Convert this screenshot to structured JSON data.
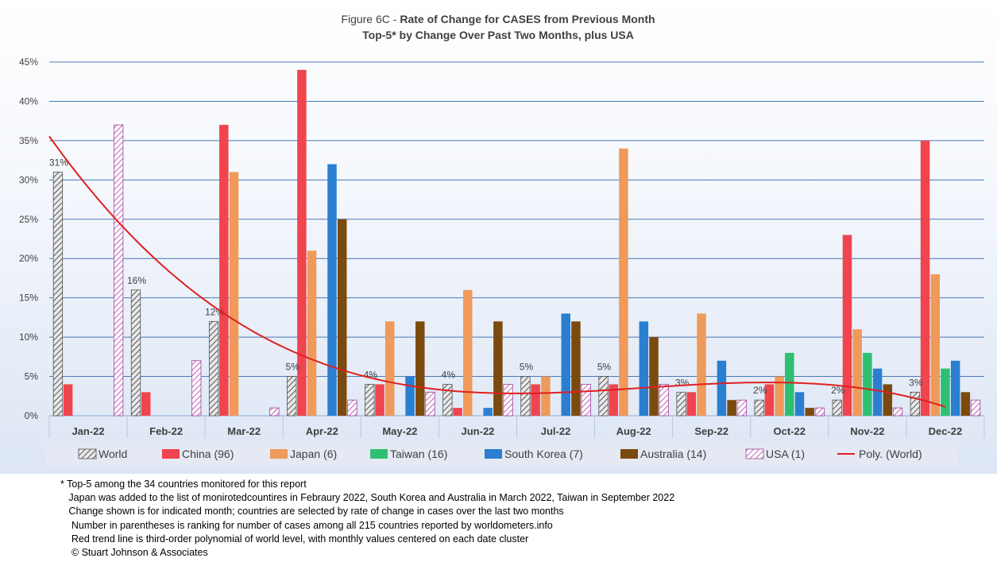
{
  "chart_data": {
    "type": "bar",
    "title_prefix": "Figure 6C - ",
    "title": "Rate of Change for CASES from Previous Month",
    "subtitle": "Top-5* by Change Over Past Two Months, plus USA",
    "categories": [
      "Jan-22",
      "Feb-22",
      "Mar-22",
      "Apr-22",
      "May-22",
      "Jun-22",
      "Jul-22",
      "Aug-22",
      "Sep-22",
      "Oct-22",
      "Nov-22",
      "Dec-22"
    ],
    "ylim": [
      0,
      45
    ],
    "yticks": [
      "0%",
      "5%",
      "10%",
      "15%",
      "20%",
      "25%",
      "30%",
      "35%",
      "40%",
      "45%"
    ],
    "grid": true,
    "legend_position": "bottom",
    "series": [
      {
        "name": "World",
        "color": "#d9d9d9",
        "pattern": "hatch-dark",
        "values": [
          31,
          16,
          12,
          5,
          4,
          4,
          5,
          5,
          3,
          2,
          2,
          3
        ],
        "labels": [
          "31%",
          "16%",
          "12%",
          "5%",
          "4%",
          "4%",
          "5%",
          "5%",
          "3%",
          "2%",
          "2%",
          "3%"
        ]
      },
      {
        "name": "China (96)",
        "color": "#f0444e",
        "values": [
          4,
          3,
          37,
          44,
          4,
          1,
          4,
          4,
          3,
          4,
          23,
          35
        ]
      },
      {
        "name": "Japan (6)",
        "color": "#ef9a5b",
        "values": [
          null,
          null,
          31,
          21,
          12,
          16,
          5,
          34,
          13,
          5,
          11,
          18
        ]
      },
      {
        "name": "Taiwan (16)",
        "color": "#2fbf71",
        "values": [
          null,
          null,
          null,
          null,
          null,
          null,
          null,
          null,
          null,
          8,
          8,
          6
        ]
      },
      {
        "name": "South Korea (7)",
        "color": "#2a7fd1",
        "values": [
          null,
          null,
          null,
          32,
          5,
          1,
          13,
          12,
          7,
          3,
          6,
          7
        ]
      },
      {
        "name": "Australia (14)",
        "color": "#7b4a0e",
        "values": [
          null,
          null,
          null,
          25,
          12,
          12,
          12,
          10,
          2,
          1,
          4,
          3
        ]
      },
      {
        "name": "USA (1)",
        "color": "#ffffff",
        "pattern": "hatch-purple",
        "values": [
          37,
          7,
          1,
          2,
          3,
          4,
          4,
          4,
          2,
          1,
          1,
          2
        ]
      }
    ],
    "trend": {
      "name": "Poly. (World)",
      "color": "#e02020",
      "type": "poly3"
    }
  },
  "footnotes": [
    "* Top-5 among the 34 countries monitored for this report",
    "   Japan was added to the list of monirotedcountires in Febraury 2022, South Korea and Australia in March 2022, Taiwan in September 2022",
    "   Change shown is for indicated month; countries are selected by rate of change in cases over the last two months",
    "    Number in parentheses is ranking for number of cases among all 215 countries reported by worldometers.info",
    "    Red trend line is third-order polynomial of world level, with monthly values centered on each date cluster",
    "    © Stuart Johnson & Associates"
  ]
}
